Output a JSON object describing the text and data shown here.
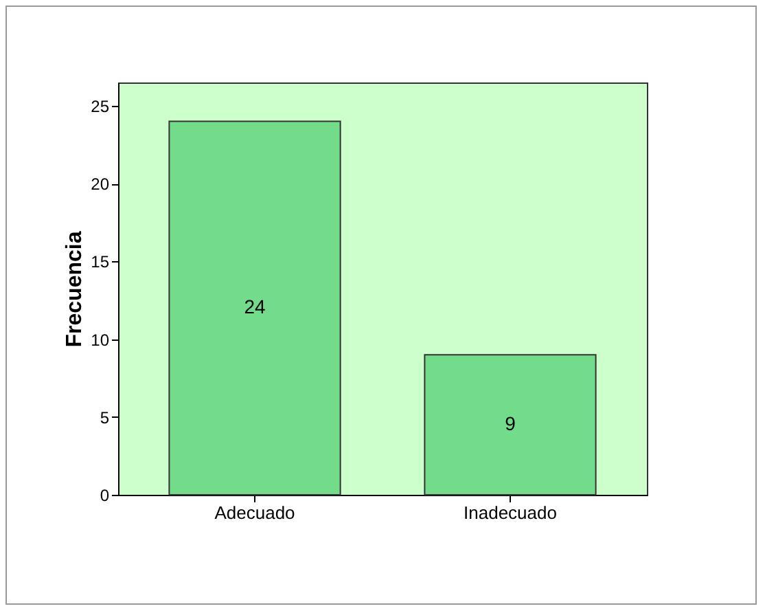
{
  "chart_data": {
    "type": "bar",
    "ylabel": "Frecuencia",
    "categories": [
      "Adecuado",
      "Inadecuado"
    ],
    "values": [
      24,
      9
    ],
    "color": "#72dc8a",
    "ylim": [
      0,
      26.5
    ],
    "yticks": [
      0,
      5,
      10,
      15,
      20,
      25
    ],
    "grid": false,
    "data_labels": true
  }
}
